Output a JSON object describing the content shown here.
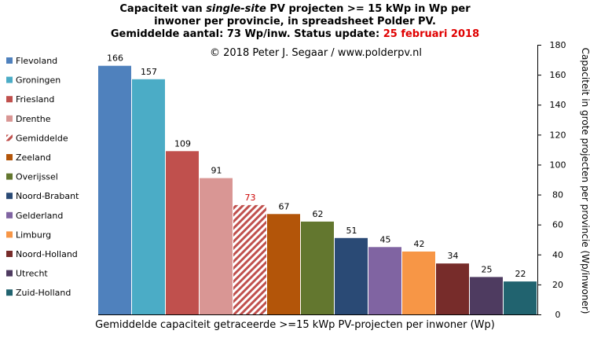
{
  "title": {
    "line1_prefix": "Capaciteit van ",
    "line1_italic": "single-site",
    "line1_suffix": " PV projecten >= 15 kWp in Wp per",
    "line2": "inwoner per provincie, in spreadsheet Polder PV.",
    "line3_prefix": "Gemiddelde aantal: 73 Wp/inw. Status update: ",
    "line3_date": "25 februari 2018"
  },
  "copyright": "© 2018 Peter J. Segaar / www.polderpv.nl",
  "colors": {
    "highlight_label": "#cc0000",
    "date_red": "#e00000"
  },
  "chart_data": {
    "type": "bar",
    "categories": [
      "Flevoland",
      "Groningen",
      "Friesland",
      "Drenthe",
      "Gemiddelde",
      "Zeeland",
      "Overijssel",
      "Noord-Brabant",
      "Gelderland",
      "Limburg",
      "Noord-Holland",
      "Utrecht",
      "Zuid-Holland"
    ],
    "values": [
      166,
      157,
      109,
      91,
      73,
      67,
      62,
      51,
      45,
      42,
      34,
      25,
      22
    ],
    "colors": [
      "#4f81bd",
      "#4bacc6",
      "#c0504d",
      "#d99694",
      "hatch-red",
      "#b35509",
      "#63772f",
      "#2a4a75",
      "#8064a2",
      "#f79646",
      "#772c2a",
      "#4e3b60",
      "#21636f"
    ],
    "xlabel": "Gemiddelde capaciteit getraceerde >=15 kWp PV-projecten per inwoner (Wp)",
    "ylabel": "Capaciteit in grote projecten per provincie (Wp/inwoner)",
    "ylim": [
      0,
      180
    ],
    "yticks": [
      0,
      20,
      40,
      60,
      80,
      100,
      120,
      140,
      160,
      180
    ],
    "y_axis_side": "right",
    "legend_position": "left",
    "grid": false
  }
}
